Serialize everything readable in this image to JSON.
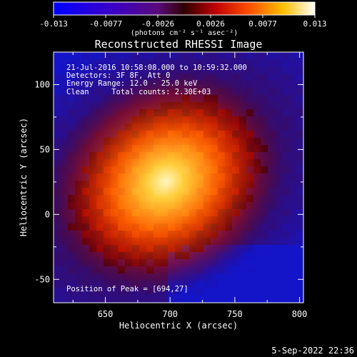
{
  "colorbar": {
    "ticks": [
      "-0.013",
      "-0.0077",
      "-0.0026",
      "0.0026",
      "0.0077",
      "0.013"
    ],
    "unit_label": "(photons cm⁻² s⁻¹ asec⁻²)"
  },
  "plot": {
    "title": "Reconstructed RHESSI Image",
    "xlabel": "Heliocentric X (arcsec)",
    "ylabel": "Heliocentric Y (arcsec)",
    "xlim": [
      610,
      803
    ],
    "ylim": [
      -68,
      125
    ],
    "x_ticks": [
      "650",
      "700",
      "750",
      "800"
    ],
    "y_ticks": [
      "100",
      "50",
      "0",
      "-50"
    ]
  },
  "info": {
    "line1": "21-Jul-2016 10:58:08.000 to 10:59:32.000",
    "line2": "Detectors: 3F 8F, Att 0",
    "line3": "Energy Range: 12.0 - 25.0 keV",
    "line4": "Clean     Total counts: 2.30E+03",
    "peak": "Position of Peak = [694,27]"
  },
  "footer": {
    "date": "5-Sep-2022 22:36"
  },
  "peak_xy": [
    694,
    27
  ]
}
